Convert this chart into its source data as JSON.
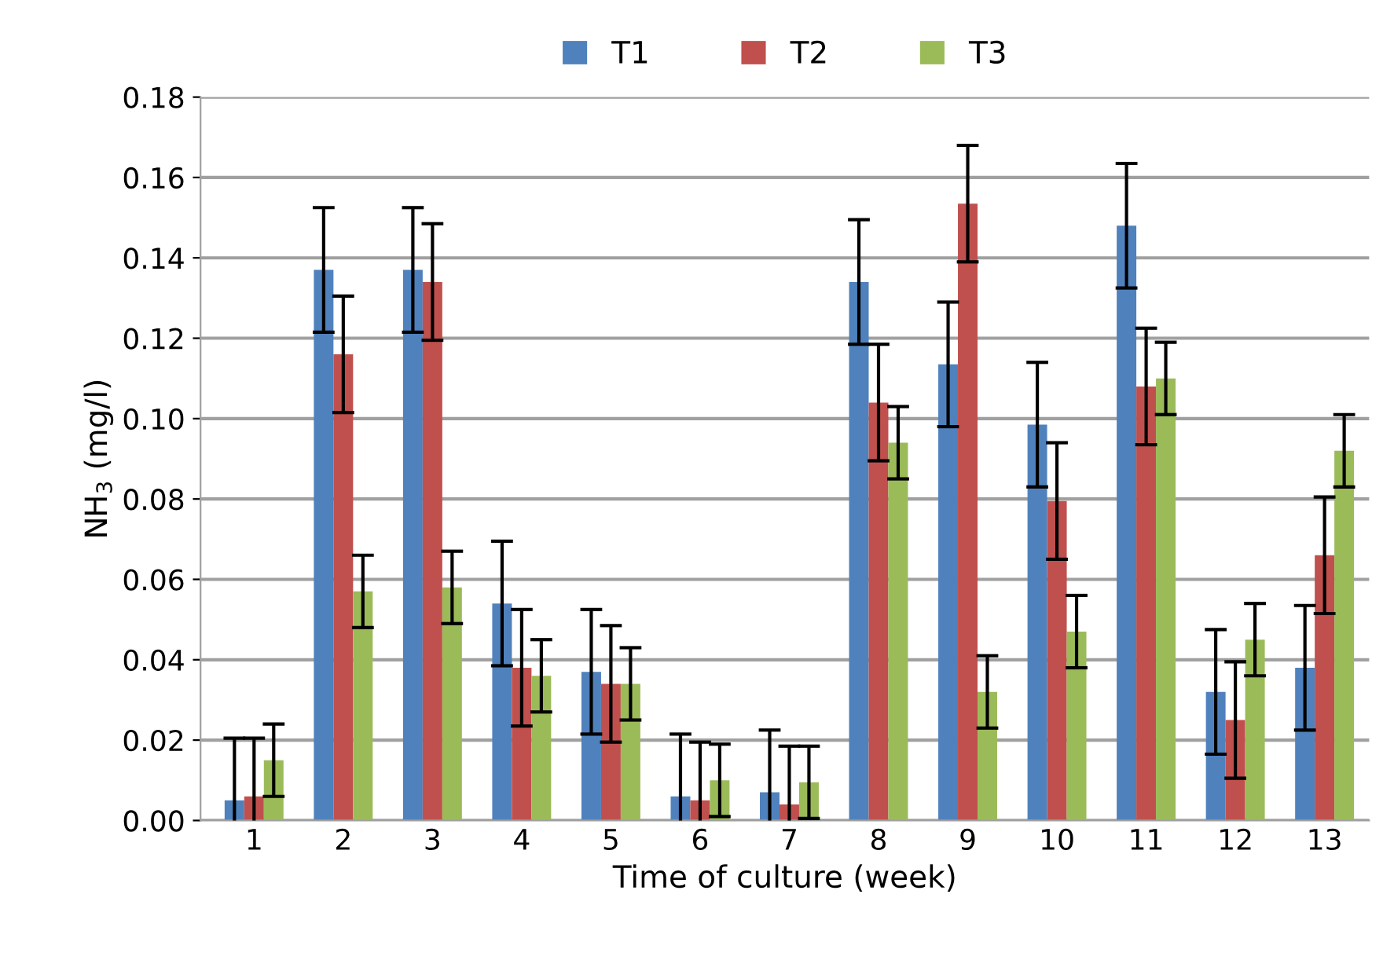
{
  "chart_data": {
    "type": "bar",
    "xlabel": "Time of culture (week)",
    "ylabel": "NH$_{3}$ (mg/l)",
    "categories": [
      "1",
      "2",
      "3",
      "4",
      "5",
      "6",
      "7",
      "8",
      "9",
      "10",
      "11",
      "12",
      "13"
    ],
    "series": [
      {
        "name": "T1",
        "color": "#4f81bd",
        "values": [
          0.005,
          0.137,
          0.137,
          0.054,
          0.037,
          0.006,
          0.007,
          0.134,
          0.1135,
          0.0985,
          0.148,
          0.032,
          0.038
        ],
        "errors": [
          0.0155,
          0.0155,
          0.0155,
          0.0155,
          0.0155,
          0.0155,
          0.0155,
          0.0155,
          0.0155,
          0.0155,
          0.0155,
          0.0155,
          0.0155
        ]
      },
      {
        "name": "T2",
        "color": "#c0504d",
        "values": [
          0.006,
          0.116,
          0.134,
          0.038,
          0.034,
          0.005,
          0.004,
          0.104,
          0.1535,
          0.0795,
          0.108,
          0.025,
          0.066
        ],
        "errors": [
          0.0145,
          0.0145,
          0.0145,
          0.0145,
          0.0145,
          0.0145,
          0.0145,
          0.0145,
          0.0145,
          0.0145,
          0.0145,
          0.0145,
          0.0145
        ]
      },
      {
        "name": "T3",
        "color": "#9bbb59",
        "values": [
          0.015,
          0.057,
          0.058,
          0.036,
          0.034,
          0.01,
          0.0095,
          0.094,
          0.032,
          0.047,
          0.11,
          0.045,
          0.092
        ],
        "errors": [
          0.009,
          0.009,
          0.009,
          0.009,
          0.009,
          0.009,
          0.009,
          0.009,
          0.009,
          0.009,
          0.009,
          0.009,
          0.009
        ]
      }
    ],
    "ylim": [
      0,
      0.18
    ],
    "yticks": [
      {
        "value": 0,
        "label": "0.00"
      },
      {
        "value": 0.02,
        "label": "0.02"
      },
      {
        "value": 0.04,
        "label": "0.04"
      },
      {
        "value": 0.06,
        "label": "0.06"
      },
      {
        "value": 0.08,
        "label": "0.08"
      },
      {
        "value": 0.1,
        "label": "0.10"
      },
      {
        "value": 0.12,
        "label": "0.12"
      },
      {
        "value": 0.14,
        "label": "0.14"
      },
      {
        "value": 0.16,
        "label": "0.16"
      },
      {
        "value": 0.18,
        "label": "0.18"
      }
    ],
    "grid": "y",
    "legend": "top"
  }
}
